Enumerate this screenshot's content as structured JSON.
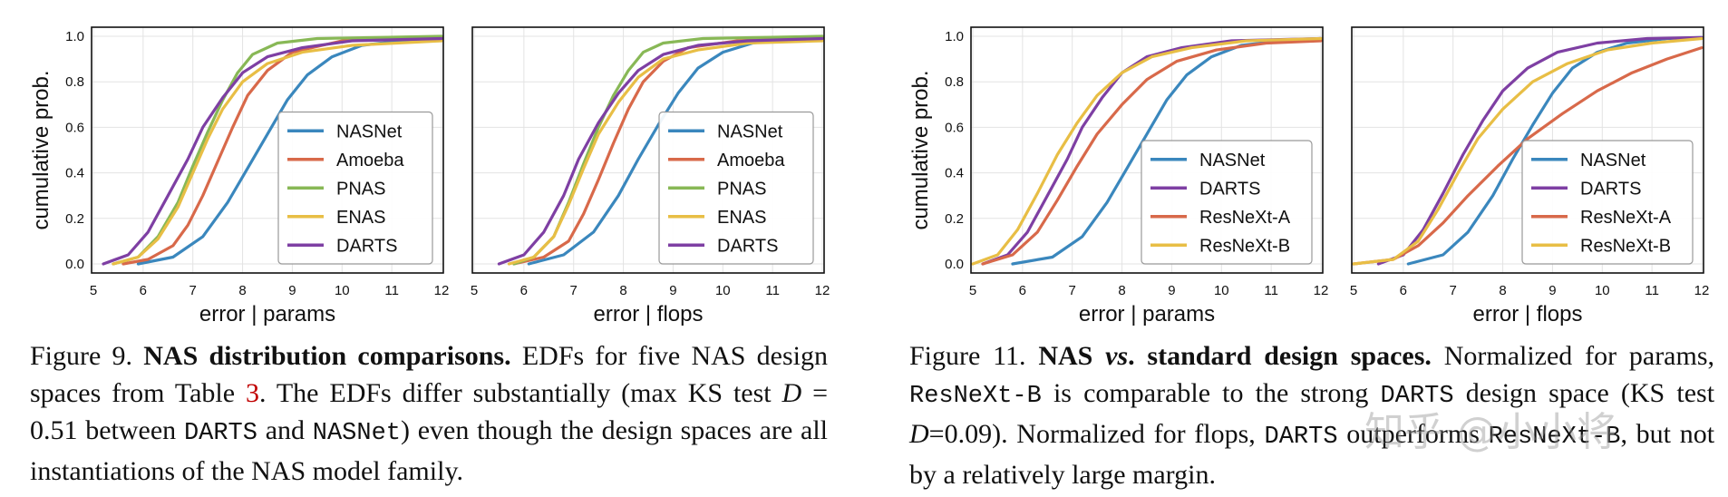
{
  "chart_data": [
    {
      "type": "line",
      "xlabel": "error | params",
      "ylabel": "cumulative prob.",
      "xlim": [
        5,
        12
      ],
      "ylim": [
        0,
        1
      ],
      "xticks": [
        "5",
        "6",
        "7",
        "8",
        "9",
        "10",
        "11",
        "12"
      ],
      "yticks": [
        "0.0",
        "0.2",
        "0.4",
        "0.6",
        "0.8",
        "1.0"
      ],
      "grid": true,
      "legend_position": "lower-right",
      "series": [
        {
          "name": "NASNet",
          "color": "#3a87bd",
          "x": [
            5.9,
            6.6,
            7.2,
            7.7,
            8.1,
            8.5,
            8.9,
            9.3,
            9.8,
            10.4,
            11.2,
            12
          ],
          "y": [
            0,
            0.03,
            0.12,
            0.27,
            0.42,
            0.57,
            0.72,
            0.83,
            0.91,
            0.96,
            0.98,
            0.99
          ]
        },
        {
          "name": "Amoeba",
          "color": "#d8694a",
          "x": [
            5.6,
            6.1,
            6.6,
            6.9,
            7.2,
            7.5,
            7.8,
            8.1,
            8.5,
            9.0,
            10.0,
            12
          ],
          "y": [
            0,
            0.02,
            0.08,
            0.17,
            0.3,
            0.45,
            0.6,
            0.74,
            0.85,
            0.93,
            0.98,
            0.995
          ]
        },
        {
          "name": "PNAS",
          "color": "#88b856",
          "x": [
            5.4,
            5.9,
            6.3,
            6.7,
            7.0,
            7.3,
            7.6,
            7.9,
            8.2,
            8.7,
            9.5,
            12
          ],
          "y": [
            0,
            0.03,
            0.12,
            0.27,
            0.43,
            0.58,
            0.72,
            0.84,
            0.92,
            0.97,
            0.99,
            1.0
          ]
        },
        {
          "name": "ENAS",
          "color": "#e8be45",
          "x": [
            5.4,
            5.9,
            6.3,
            6.7,
            7.0,
            7.3,
            7.6,
            8.0,
            8.5,
            9.2,
            10.2,
            12
          ],
          "y": [
            0,
            0.03,
            0.11,
            0.25,
            0.4,
            0.55,
            0.68,
            0.8,
            0.88,
            0.93,
            0.96,
            0.98
          ]
        },
        {
          "name": "DARTS",
          "color": "#7e3fa3",
          "x": [
            5.2,
            5.7,
            6.1,
            6.5,
            6.9,
            7.2,
            7.6,
            8.0,
            8.5,
            9.2,
            10.2,
            12
          ],
          "y": [
            0,
            0.04,
            0.14,
            0.3,
            0.46,
            0.6,
            0.73,
            0.84,
            0.91,
            0.95,
            0.98,
            0.99
          ]
        }
      ]
    },
    {
      "type": "line",
      "xlabel": "error | flops",
      "ylabel": "",
      "xlim": [
        5,
        12
      ],
      "ylim": [
        0,
        1
      ],
      "xticks": [
        "5",
        "6",
        "7",
        "8",
        "9",
        "10",
        "11",
        "12"
      ],
      "yticks": [],
      "grid": true,
      "legend_position": "lower-right",
      "series": [
        {
          "name": "NASNet",
          "color": "#3a87bd",
          "x": [
            6.1,
            6.8,
            7.4,
            7.9,
            8.3,
            8.7,
            9.1,
            9.5,
            10.0,
            10.6,
            11.3,
            12
          ],
          "y": [
            0,
            0.04,
            0.14,
            0.3,
            0.46,
            0.61,
            0.75,
            0.86,
            0.93,
            0.97,
            0.99,
            0.995
          ]
        },
        {
          "name": "Amoeba",
          "color": "#d8694a",
          "x": [
            5.8,
            6.4,
            6.9,
            7.2,
            7.5,
            7.8,
            8.1,
            8.4,
            8.8,
            9.3,
            10.3,
            12
          ],
          "y": [
            0,
            0.03,
            0.1,
            0.22,
            0.37,
            0.53,
            0.68,
            0.8,
            0.89,
            0.95,
            0.98,
            0.995
          ]
        },
        {
          "name": "PNAS",
          "color": "#88b856",
          "x": [
            5.8,
            6.2,
            6.6,
            6.9,
            7.2,
            7.5,
            7.8,
            8.1,
            8.4,
            8.8,
            9.6,
            12
          ],
          "y": [
            0,
            0.03,
            0.12,
            0.27,
            0.44,
            0.6,
            0.74,
            0.85,
            0.93,
            0.97,
            0.99,
            1.0
          ]
        },
        {
          "name": "ENAS",
          "color": "#e8be45",
          "x": [
            5.7,
            6.2,
            6.6,
            6.9,
            7.2,
            7.5,
            7.9,
            8.3,
            8.8,
            9.5,
            10.5,
            12
          ],
          "y": [
            0,
            0.03,
            0.12,
            0.26,
            0.42,
            0.57,
            0.71,
            0.82,
            0.9,
            0.94,
            0.97,
            0.98
          ]
        },
        {
          "name": "DARTS",
          "color": "#7e3fa3",
          "x": [
            5.5,
            6.0,
            6.4,
            6.8,
            7.1,
            7.5,
            7.9,
            8.3,
            8.8,
            9.5,
            10.5,
            12
          ],
          "y": [
            0,
            0.04,
            0.14,
            0.3,
            0.46,
            0.62,
            0.75,
            0.85,
            0.92,
            0.96,
            0.98,
            0.99
          ]
        }
      ]
    },
    {
      "type": "line",
      "xlabel": "error | params",
      "ylabel": "cumulative prob.",
      "xlim": [
        5,
        12
      ],
      "ylim": [
        0,
        1
      ],
      "xticks": [
        "5",
        "6",
        "7",
        "8",
        "9",
        "10",
        "11",
        "12"
      ],
      "yticks": [
        "0.0",
        "0.2",
        "0.4",
        "0.6",
        "0.8",
        "1.0"
      ],
      "grid": true,
      "legend_position": "lower-right",
      "series": [
        {
          "name": "NASNet",
          "color": "#3a87bd",
          "x": [
            5.8,
            6.6,
            7.2,
            7.7,
            8.1,
            8.5,
            8.9,
            9.3,
            9.8,
            10.4,
            11.2,
            12
          ],
          "y": [
            0,
            0.03,
            0.12,
            0.27,
            0.42,
            0.57,
            0.72,
            0.83,
            0.91,
            0.96,
            0.98,
            0.99
          ]
        },
        {
          "name": "DARTS",
          "color": "#7e3fa3",
          "x": [
            5.2,
            5.7,
            6.1,
            6.5,
            6.9,
            7.2,
            7.6,
            8.0,
            8.5,
            9.2,
            10.2,
            12
          ],
          "y": [
            0,
            0.04,
            0.14,
            0.3,
            0.46,
            0.6,
            0.73,
            0.84,
            0.91,
            0.95,
            0.98,
            0.99
          ]
        },
        {
          "name": "ResNeXt-A",
          "color": "#d8694a",
          "x": [
            5.2,
            5.8,
            6.3,
            6.7,
            7.1,
            7.5,
            8.0,
            8.5,
            9.1,
            9.9,
            10.9,
            12
          ],
          "y": [
            0,
            0.04,
            0.14,
            0.28,
            0.43,
            0.57,
            0.7,
            0.81,
            0.89,
            0.94,
            0.97,
            0.98
          ]
        },
        {
          "name": "ResNeXt-B",
          "color": "#e8be45",
          "x": [
            5.0,
            5.5,
            5.9,
            6.3,
            6.7,
            7.1,
            7.5,
            8.0,
            8.6,
            9.4,
            10.5,
            12
          ],
          "y": [
            0,
            0.04,
            0.15,
            0.31,
            0.48,
            0.62,
            0.74,
            0.84,
            0.91,
            0.95,
            0.98,
            0.99
          ]
        }
      ]
    },
    {
      "type": "line",
      "xlabel": "error | flops",
      "ylabel": "",
      "xlim": [
        5,
        12
      ],
      "ylim": [
        0,
        1
      ],
      "xticks": [
        "5",
        "6",
        "7",
        "8",
        "9",
        "10",
        "11",
        "12"
      ],
      "yticks": [],
      "grid": true,
      "legend_position": "lower-right",
      "series": [
        {
          "name": "NASNet",
          "color": "#3a87bd",
          "x": [
            6.1,
            6.8,
            7.3,
            7.8,
            8.2,
            8.6,
            9.0,
            9.4,
            9.9,
            10.5,
            11.3,
            12
          ],
          "y": [
            0,
            0.04,
            0.14,
            0.3,
            0.46,
            0.61,
            0.75,
            0.86,
            0.93,
            0.97,
            0.99,
            0.995
          ]
        },
        {
          "name": "DARTS",
          "color": "#7e3fa3",
          "x": [
            5.5,
            6.0,
            6.4,
            6.8,
            7.2,
            7.6,
            8.0,
            8.5,
            9.1,
            9.9,
            10.9,
            12
          ],
          "y": [
            0,
            0.04,
            0.15,
            0.31,
            0.48,
            0.63,
            0.76,
            0.86,
            0.93,
            0.97,
            0.99,
            0.995
          ]
        },
        {
          "name": "ResNeXt-A",
          "color": "#d8694a",
          "x": [
            5.0,
            5.8,
            6.3,
            6.8,
            7.3,
            7.9,
            8.5,
            9.2,
            9.9,
            10.6,
            11.3,
            12
          ],
          "y": [
            0,
            0.02,
            0.08,
            0.18,
            0.3,
            0.43,
            0.55,
            0.66,
            0.76,
            0.84,
            0.9,
            0.95
          ]
        },
        {
          "name": "ResNeXt-B",
          "color": "#e8be45",
          "x": [
            5.0,
            5.8,
            6.3,
            6.7,
            7.1,
            7.5,
            8.0,
            8.6,
            9.3,
            10.1,
            11.0,
            12
          ],
          "y": [
            0,
            0.02,
            0.1,
            0.24,
            0.4,
            0.55,
            0.68,
            0.8,
            0.88,
            0.94,
            0.97,
            0.99
          ]
        }
      ]
    }
  ],
  "captions": {
    "fig9": {
      "label": "Figure 9.",
      "title": "NAS distribution comparisons.",
      "t1": "EDFs for five NAS design spaces from Table",
      "ref": "3",
      "t2": ". The EDFs differ substantially (max KS test",
      "var": "D",
      "eq": " = 0.51 between",
      "code1": "DARTS",
      "t3": "and",
      "code2": "NASNet",
      "t4": ") even though the design spaces are all instantiations of the NAS model family."
    },
    "fig11": {
      "label": "Figure 11.",
      "title_a": "NAS",
      "title_vs": "vs",
      "title_b": ". standard design spaces.",
      "t1": "Normalized for params,",
      "code1": "ResNeXt-B",
      "t2": "is comparable to the strong",
      "code2": "DARTS",
      "t3": "design space (KS test",
      "var": "D",
      "eq": "=0.09). Normalized for flops,",
      "code3": "DARTS",
      "t4": "outperforms",
      "code4": "ResNeXt-B",
      "t5": ", but not by a relatively large margin."
    }
  },
  "watermark": "知乎 @小小将"
}
